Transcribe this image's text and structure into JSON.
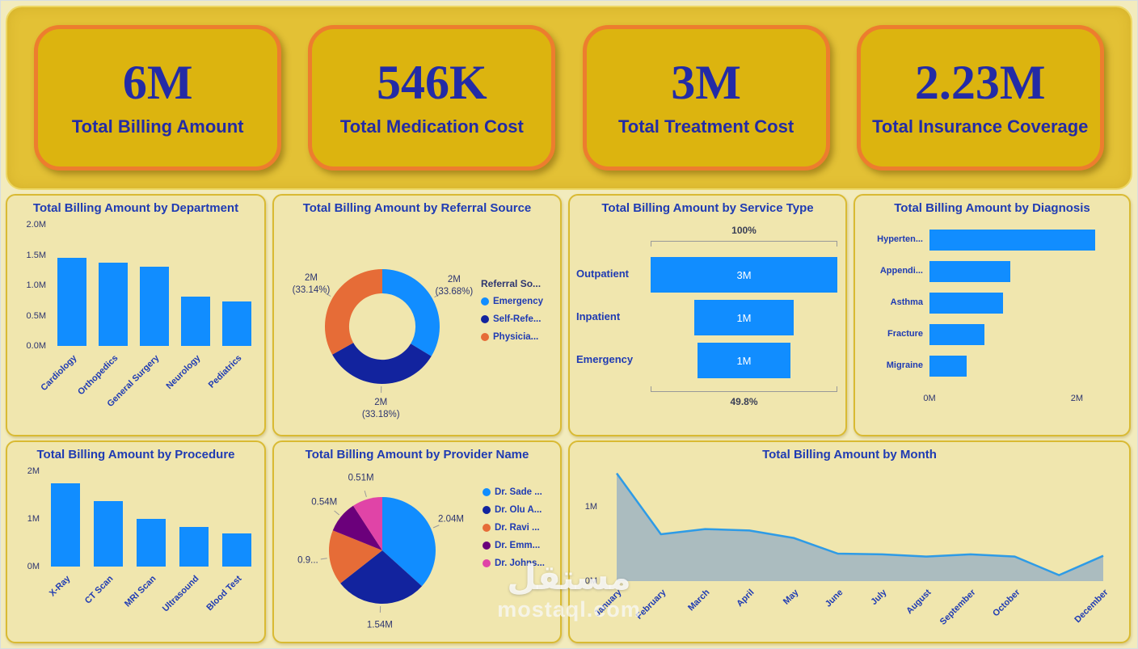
{
  "kpi_cards": [
    {
      "value": "6M",
      "label": "Total Billing Amount"
    },
    {
      "value": "546K",
      "label": "Total Medication Cost"
    },
    {
      "value": "3M",
      "label": "Total Treatment Cost"
    },
    {
      "value": "2.23M",
      "label": "Total Insurance Coverage"
    }
  ],
  "watermark": {
    "logo_text": "مستقل",
    "site_text": "mostaql.com"
  },
  "colors": {
    "accent_blue": "#118DFF",
    "dark_blue": "#12239E",
    "orange": "#E66C37",
    "purple": "#6B007B",
    "pink": "#E044A7",
    "title_text": "#1F3BB3",
    "kpi_text": "#232BA6",
    "card_bg": "#DCB40F",
    "card_border": "#ED7D2E",
    "strip_bg": "#E3C135",
    "panel_bg": "#F0E6AE",
    "panel_border": "#D9BA33",
    "page_bg": "#F2EBBD",
    "area_fill": "#9FB4C2",
    "area_line": "#2E9BE6",
    "funnel_connector": "#999999"
  },
  "chart_data": [
    {
      "id": "department",
      "type": "bar",
      "title": "Total Billing Amount by Department",
      "categories": [
        "Cardiology",
        "Orthopedics",
        "General Surgery",
        "Neurology",
        "Pediatrics"
      ],
      "values": [
        1.45,
        1.37,
        1.31,
        0.82,
        0.73
      ],
      "unit": "M",
      "ylim": [
        0,
        2
      ],
      "yticks": [
        {
          "label": "0.0M",
          "value": 0
        },
        {
          "label": "0.5M",
          "value": 0.5
        },
        {
          "label": "1.0M",
          "value": 1
        },
        {
          "label": "1.5M",
          "value": 1.5
        },
        {
          "label": "2.0M",
          "value": 2
        }
      ]
    },
    {
      "id": "referral",
      "type": "donut",
      "title": "Total Billing Amount by Referral Source",
      "legend_title": "Referral So...",
      "slices": [
        {
          "label": "Emergency",
          "value_label": "2M",
          "pct_label": "(33.68%)",
          "pct": 33.68,
          "color": "#118DFF"
        },
        {
          "label": "Self-Refe...",
          "value_label": "2M",
          "pct_label": "(33.18%)",
          "pct": 33.18,
          "color": "#12239E"
        },
        {
          "label": "Physicia...",
          "value_label": "2M",
          "pct_label": "(33.14%)",
          "pct": 33.14,
          "color": "#E66C37"
        }
      ]
    },
    {
      "id": "service",
      "type": "funnel",
      "title": "Total Billing Amount by Service Type",
      "top_label": "100%",
      "bottom_label": "49.8%",
      "rows": [
        {
          "label": "Outpatient",
          "value_label": "3M",
          "fraction": 1.0
        },
        {
          "label": "Inpatient",
          "value_label": "1M",
          "fraction": 0.53
        },
        {
          "label": "Emergency",
          "value_label": "1M",
          "fraction": 0.498
        }
      ]
    },
    {
      "id": "diagnosis",
      "type": "hbar",
      "title": "Total Billing Amount by Diagnosis",
      "categories": [
        "Hyperten...",
        "Appendi...",
        "Asthma",
        "Fracture",
        "Migraine"
      ],
      "values": [
        2.25,
        1.1,
        1.0,
        0.75,
        0.5
      ],
      "unit": "M",
      "xlim": [
        0,
        2.5
      ],
      "xticks": [
        {
          "label": "0M",
          "value": 0
        },
        {
          "label": "2M",
          "value": 2
        }
      ]
    },
    {
      "id": "procedure",
      "type": "bar",
      "title": "Total Billing Amount by Procedure",
      "categories": [
        "X-Ray",
        "CT Scan",
        "MRI Scan",
        "Ultrasound",
        "Blood Test"
      ],
      "values": [
        1.75,
        1.38,
        1.0,
        0.83,
        0.7
      ],
      "unit": "M",
      "ylim": [
        0,
        2
      ],
      "yticks": [
        {
          "label": "0M",
          "value": 0
        },
        {
          "label": "1M",
          "value": 1
        },
        {
          "label": "2M",
          "value": 2
        }
      ]
    },
    {
      "id": "provider",
      "type": "pie",
      "title": "Total Billing Amount by Provider Name",
      "slices": [
        {
          "label": "Dr. Sade ...",
          "value_label": "2.04M",
          "value": 2.04,
          "color": "#118DFF"
        },
        {
          "label": "Dr. Olu A...",
          "value_label": "1.54M",
          "value": 1.54,
          "color": "#12239E"
        },
        {
          "label": "Dr. Ravi ...",
          "value_label": "0.9...",
          "value": 0.93,
          "color": "#E66C37"
        },
        {
          "label": "Dr. Emm...",
          "value_label": "0.54M",
          "value": 0.54,
          "color": "#6B007B"
        },
        {
          "label": "Dr. Johns...",
          "value_label": "0.51M",
          "value": 0.51,
          "color": "#E044A7"
        }
      ]
    },
    {
      "id": "month",
      "type": "area",
      "title": "Total Billing Amount by Month",
      "categories": [
        "January",
        "February",
        "March",
        "April",
        "May",
        "June",
        "July",
        "August",
        "September",
        "October",
        "",
        "December"
      ],
      "values": [
        1.45,
        0.63,
        0.7,
        0.68,
        0.58,
        0.37,
        0.36,
        0.33,
        0.36,
        0.33,
        0.08,
        0.34
      ],
      "unit": "M",
      "ylim": [
        0,
        1.5
      ],
      "yticks": [
        {
          "label": "0M",
          "value": 0
        },
        {
          "label": "1M",
          "value": 1
        }
      ]
    }
  ]
}
